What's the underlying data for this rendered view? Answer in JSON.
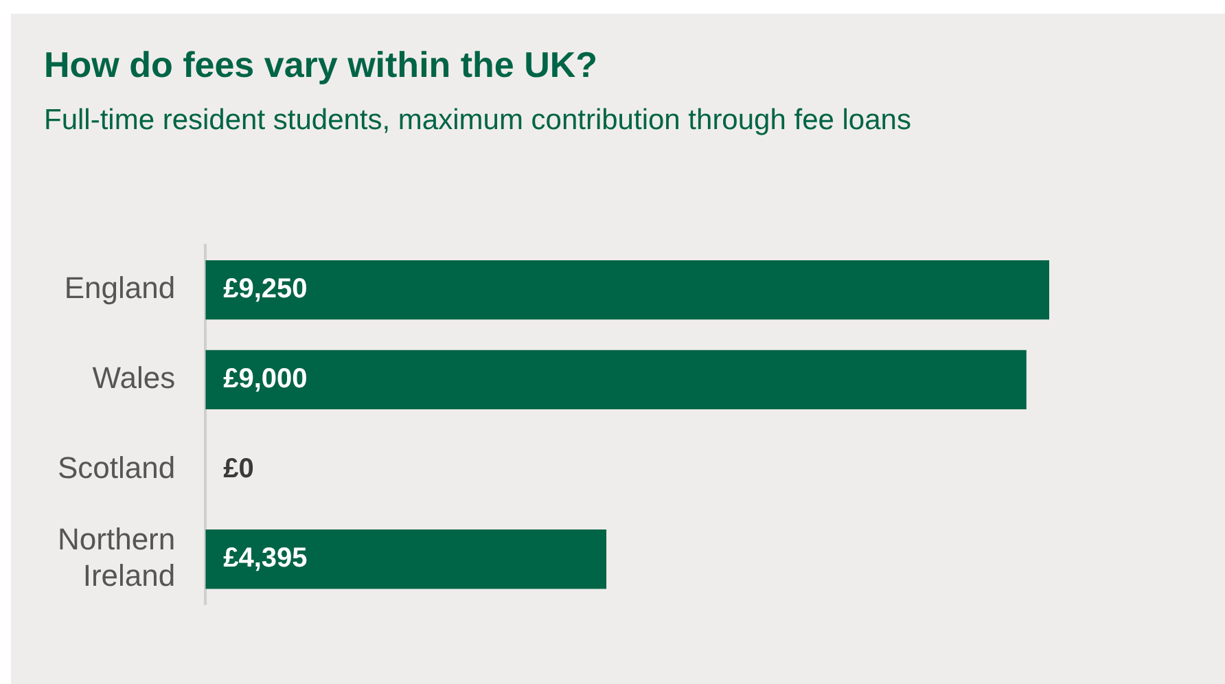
{
  "chart_data": {
    "type": "bar",
    "orientation": "horizontal",
    "title": "How do fees vary within the UK?",
    "subtitle": "Full-time resident students, maximum contribution through fee loans",
    "categories": [
      "England",
      "Wales",
      "Scotland",
      "Northern Ireland"
    ],
    "values": [
      9250,
      9000,
      0,
      4395
    ],
    "color": "#006446",
    "value_labels": [
      "£9,250",
      "£9,000",
      "£0",
      "£4,395"
    ]
  }
}
